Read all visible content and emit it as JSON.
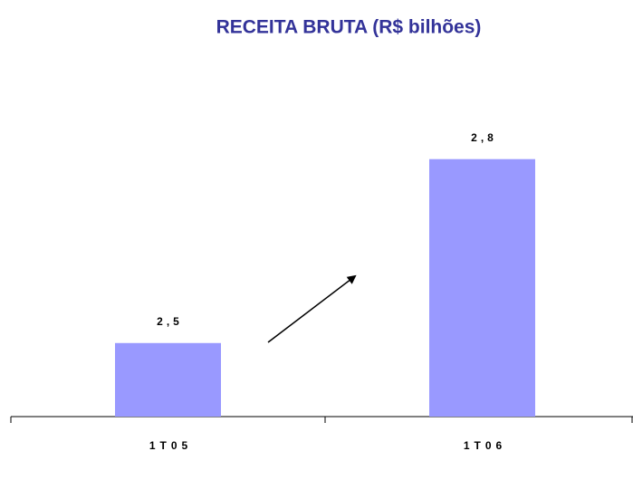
{
  "chart_data": {
    "type": "bar",
    "title": "RECEITA BRUTA (R$ bilhões)",
    "categories": [
      "1T05",
      "1T06"
    ],
    "values": [
      2.5,
      2.8
    ],
    "value_labels": [
      "2,5",
      "2,8"
    ],
    "color": "#9999ff",
    "ylim": [
      2.38,
      2.9
    ]
  }
}
